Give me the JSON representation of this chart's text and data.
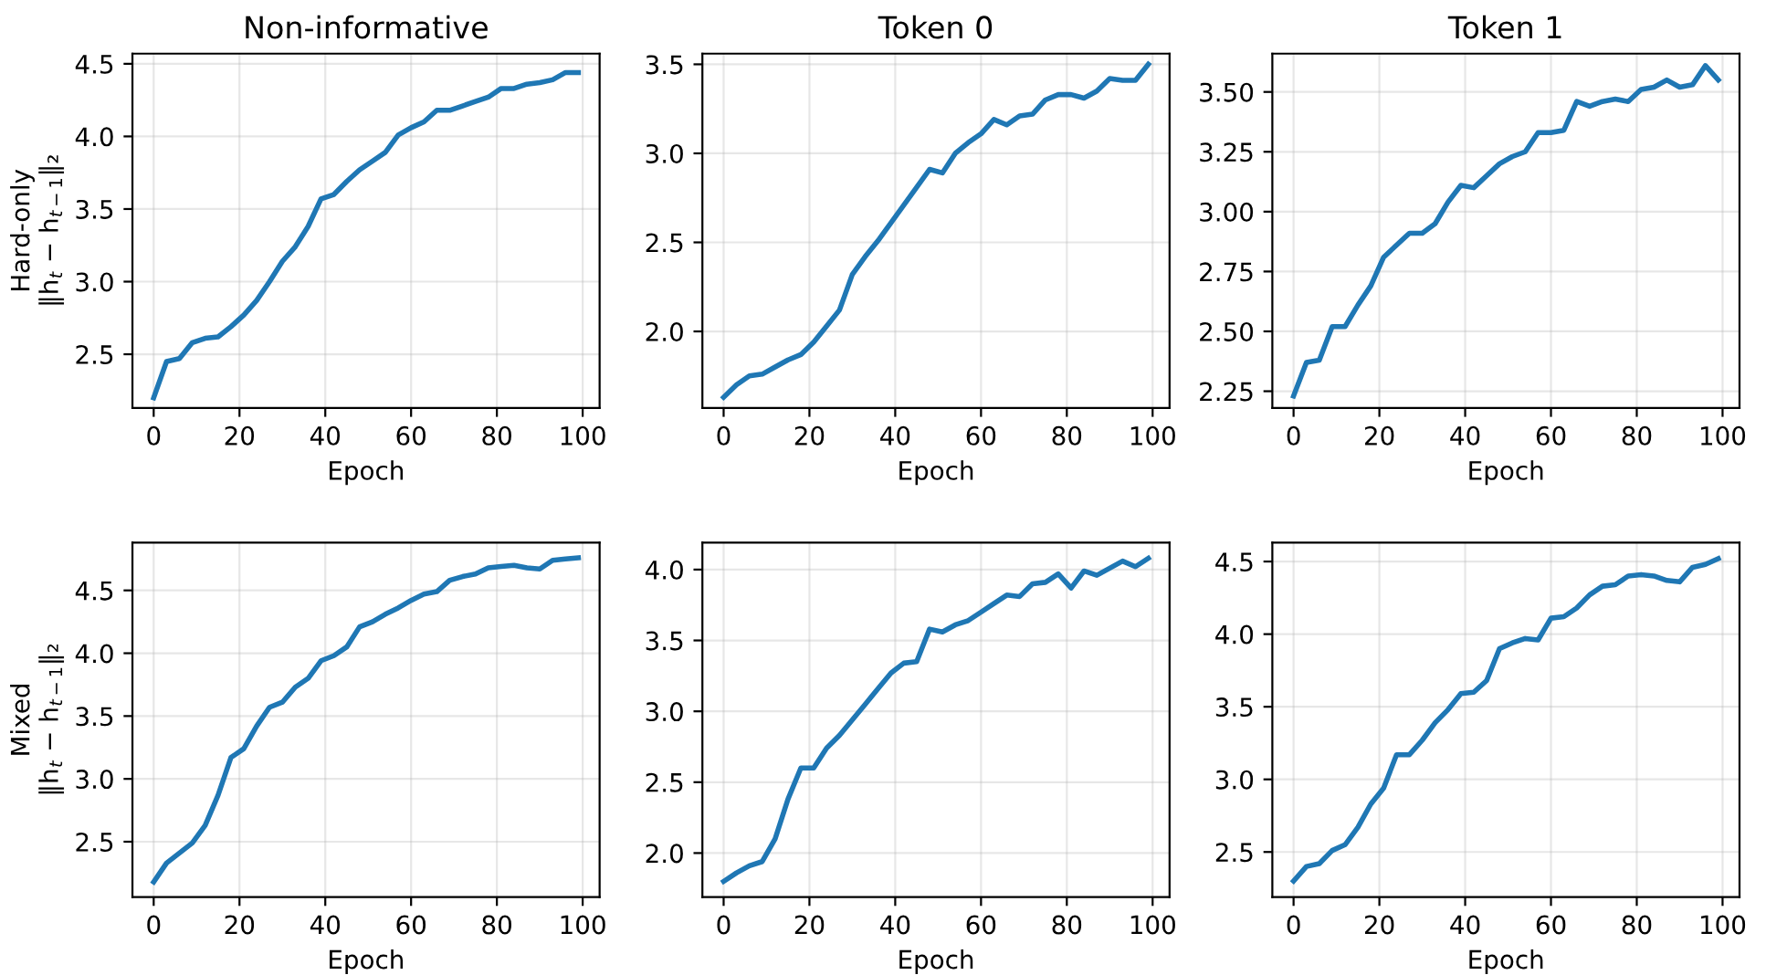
{
  "chart_data": [
    {
      "type": "line",
      "title": "Non-informative",
      "xlabel": "Epoch",
      "ylabel": "Hard-only\n‖h$_{t}$ − h$_{t−1}$‖₂",
      "xlim": [
        -4.95,
        103.95
      ],
      "xticks": [
        0,
        20,
        40,
        60,
        80,
        100
      ],
      "ylim": [
        2.13,
        4.57
      ],
      "yticks": [
        2.5,
        {
          "value": 3,
          "label": "3.0"
        },
        3.5,
        {
          "value": 4,
          "label": "4.0"
        },
        4.5
      ],
      "grid": true,
      "x": [
        0,
        3,
        6,
        9,
        12,
        15,
        18,
        21,
        24,
        27,
        30,
        33,
        36,
        39,
        42,
        45,
        48,
        51,
        54,
        57,
        60,
        63,
        66,
        69,
        72,
        75,
        78,
        81,
        84,
        87,
        90,
        93,
        96,
        99
      ],
      "series": [
        {
          "color": "#1f77b4",
          "values": [
            2.2,
            2.45,
            2.47,
            2.58,
            2.61,
            2.62,
            2.69,
            2.77,
            2.87,
            3.0,
            3.14,
            3.24,
            3.38,
            3.57,
            3.6,
            3.69,
            3.77,
            3.83,
            3.89,
            4.01,
            4.06,
            4.1,
            4.18,
            4.18,
            4.21,
            4.24,
            4.27,
            4.33,
            4.33,
            4.36,
            4.37,
            4.39,
            4.44,
            4.44
          ]
        }
      ]
    },
    {
      "type": "line",
      "title": "Token 0",
      "xlabel": "Epoch",
      "xlim": [
        -4.95,
        103.95
      ],
      "xticks": [
        0,
        20,
        40,
        60,
        80,
        100
      ],
      "ylim": [
        1.57,
        3.56
      ],
      "yticks": [
        {
          "value": 2,
          "label": "2.0"
        },
        2.5,
        {
          "value": 3,
          "label": "3.0"
        },
        3.5
      ],
      "grid": true,
      "x": [
        0,
        3,
        6,
        9,
        12,
        15,
        18,
        21,
        24,
        27,
        30,
        33,
        36,
        39,
        42,
        45,
        48,
        51,
        54,
        57,
        60,
        63,
        66,
        69,
        72,
        75,
        78,
        81,
        84,
        87,
        90,
        93,
        96,
        99
      ],
      "series": [
        {
          "color": "#1f77b4",
          "values": [
            1.63,
            1.7,
            1.75,
            1.76,
            1.8,
            1.84,
            1.87,
            1.94,
            2.03,
            2.12,
            2.32,
            2.42,
            2.51,
            2.61,
            2.71,
            2.81,
            2.91,
            2.89,
            3.0,
            3.06,
            3.11,
            3.19,
            3.16,
            3.21,
            3.22,
            3.3,
            3.33,
            3.33,
            3.31,
            3.35,
            3.42,
            3.41,
            3.41,
            3.5
          ]
        }
      ]
    },
    {
      "type": "line",
      "title": "Token 1",
      "xlabel": "Epoch",
      "xlim": [
        -4.95,
        103.95
      ],
      "xticks": [
        0,
        20,
        40,
        60,
        80,
        100
      ],
      "ylim": [
        2.18,
        3.66
      ],
      "yticks": [
        {
          "value": 2.25,
          "label": "2.25"
        },
        {
          "value": 2.5,
          "label": "2.50"
        },
        {
          "value": 2.75,
          "label": "2.75"
        },
        {
          "value": 3.0,
          "label": "3.00"
        },
        {
          "value": 3.25,
          "label": "3.25"
        },
        {
          "value": 3.5,
          "label": "3.50"
        }
      ],
      "grid": true,
      "x": [
        0,
        3,
        6,
        9,
        12,
        15,
        18,
        21,
        24,
        27,
        30,
        33,
        36,
        39,
        42,
        45,
        48,
        51,
        54,
        57,
        60,
        63,
        66,
        69,
        72,
        75,
        78,
        81,
        84,
        87,
        90,
        93,
        96,
        99
      ],
      "series": [
        {
          "color": "#1f77b4",
          "values": [
            2.23,
            2.37,
            2.38,
            2.52,
            2.52,
            2.61,
            2.69,
            2.81,
            2.86,
            2.91,
            2.91,
            2.95,
            3.04,
            3.11,
            3.1,
            3.15,
            3.2,
            3.23,
            3.25,
            3.33,
            3.33,
            3.34,
            3.46,
            3.44,
            3.46,
            3.47,
            3.46,
            3.51,
            3.52,
            3.55,
            3.52,
            3.53,
            3.61,
            3.55
          ]
        }
      ]
    },
    {
      "type": "line",
      "xlabel": "Epoch",
      "ylabel": "Mixed\n‖h$_{t}$ − h$_{t−1}$‖₂",
      "xlim": [
        -4.95,
        103.95
      ],
      "xticks": [
        0,
        20,
        40,
        60,
        80,
        100
      ],
      "ylim": [
        2.06,
        4.88
      ],
      "yticks": [
        2.5,
        {
          "value": 3,
          "label": "3.0"
        },
        3.5,
        {
          "value": 4,
          "label": "4.0"
        },
        4.5
      ],
      "grid": true,
      "x": [
        0,
        3,
        6,
        9,
        12,
        15,
        18,
        21,
        24,
        27,
        30,
        33,
        36,
        39,
        42,
        45,
        48,
        51,
        54,
        57,
        60,
        63,
        66,
        69,
        72,
        75,
        78,
        81,
        84,
        87,
        90,
        93,
        96,
        99
      ],
      "series": [
        {
          "color": "#1f77b4",
          "values": [
            2.18,
            2.33,
            2.41,
            2.49,
            2.63,
            2.87,
            3.17,
            3.24,
            3.42,
            3.57,
            3.61,
            3.73,
            3.8,
            3.94,
            3.98,
            4.05,
            4.21,
            4.25,
            4.31,
            4.36,
            4.42,
            4.47,
            4.49,
            4.58,
            4.61,
            4.63,
            4.68,
            4.69,
            4.7,
            4.68,
            4.67,
            4.74,
            4.75,
            4.76
          ]
        }
      ]
    },
    {
      "type": "line",
      "xlabel": "Epoch",
      "xlim": [
        -4.95,
        103.95
      ],
      "xticks": [
        0,
        20,
        40,
        60,
        80,
        100
      ],
      "ylim": [
        1.69,
        4.19
      ],
      "yticks": [
        {
          "value": 2,
          "label": "2.0"
        },
        2.5,
        {
          "value": 3,
          "label": "3.0"
        },
        3.5,
        {
          "value": 4,
          "label": "4.0"
        }
      ],
      "grid": true,
      "x": [
        0,
        3,
        6,
        9,
        12,
        15,
        18,
        21,
        24,
        27,
        30,
        33,
        36,
        39,
        42,
        45,
        48,
        51,
        54,
        57,
        60,
        63,
        66,
        69,
        72,
        75,
        78,
        81,
        84,
        87,
        90,
        93,
        96,
        99
      ],
      "series": [
        {
          "color": "#1f77b4",
          "values": [
            1.8,
            1.86,
            1.91,
            1.94,
            2.1,
            2.38,
            2.6,
            2.6,
            2.74,
            2.83,
            2.94,
            3.05,
            3.16,
            3.27,
            3.34,
            3.35,
            3.58,
            3.56,
            3.61,
            3.64,
            3.7,
            3.76,
            3.82,
            3.81,
            3.9,
            3.91,
            3.97,
            3.87,
            3.99,
            3.96,
            4.01,
            4.06,
            4.02,
            4.08
          ]
        }
      ]
    },
    {
      "type": "line",
      "xlabel": "Epoch",
      "xlim": [
        -4.95,
        103.95
      ],
      "xticks": [
        0,
        20,
        40,
        60,
        80,
        100
      ],
      "ylim": [
        2.19,
        4.63
      ],
      "yticks": [
        2.5,
        {
          "value": 3,
          "label": "3.0"
        },
        3.5,
        {
          "value": 4,
          "label": "4.0"
        },
        4.5
      ],
      "grid": true,
      "x": [
        0,
        3,
        6,
        9,
        12,
        15,
        18,
        21,
        24,
        27,
        30,
        33,
        36,
        39,
        42,
        45,
        48,
        51,
        54,
        57,
        60,
        63,
        66,
        69,
        72,
        75,
        78,
        81,
        84,
        87,
        90,
        93,
        96,
        99
      ],
      "series": [
        {
          "color": "#1f77b4",
          "values": [
            2.3,
            2.4,
            2.42,
            2.51,
            2.55,
            2.67,
            2.83,
            2.94,
            3.17,
            3.17,
            3.27,
            3.39,
            3.48,
            3.59,
            3.6,
            3.68,
            3.9,
            3.94,
            3.97,
            3.96,
            4.11,
            4.12,
            4.18,
            4.27,
            4.33,
            4.34,
            4.4,
            4.41,
            4.4,
            4.37,
            4.36,
            4.46,
            4.48,
            4.52
          ]
        }
      ]
    }
  ]
}
